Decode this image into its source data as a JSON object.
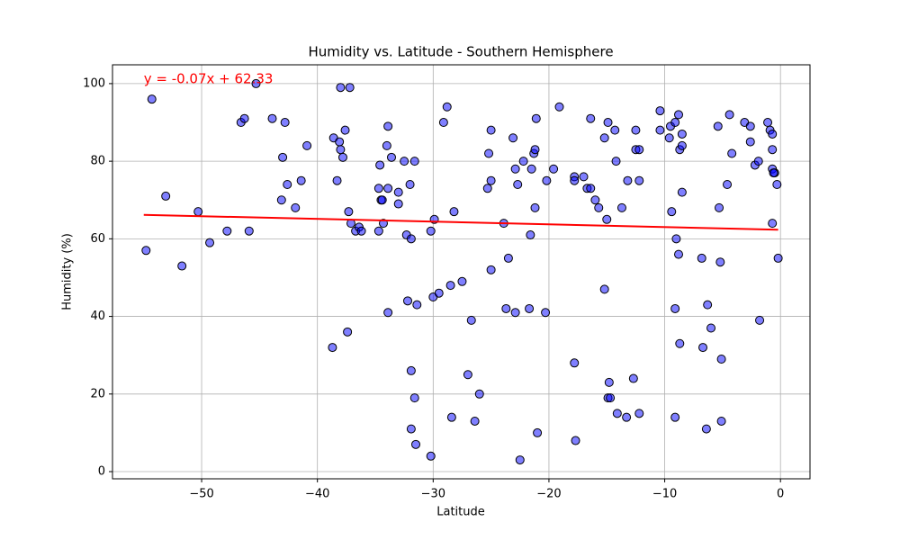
{
  "chart_data": {
    "type": "scatter",
    "title": "Humidity vs. Latitude - Southern Hemisphere",
    "xlabel": "Latitude",
    "ylabel": "Humidity (%)",
    "x": [
      -54.8,
      -54.3,
      -53.1,
      -51.7,
      -50.3,
      -49.3,
      -47.8,
      -46.6,
      -46.3,
      -45.9,
      -45.3,
      -43.9,
      -42.8,
      -43.0,
      -43.1,
      -42.6,
      -41.9,
      -41.4,
      -40.9,
      -38.7,
      -38.6,
      -38.3,
      -38.1,
      -38.0,
      -38.0,
      -37.8,
      -37.6,
      -37.4,
      -37.3,
      -37.2,
      -37.1,
      -36.7,
      -36.4,
      -36.2,
      -34.7,
      -34.6,
      -34.7,
      -34.5,
      -34.4,
      -34.3,
      -34.0,
      -33.9,
      -33.9,
      -33.9,
      -33.6,
      -33.0,
      -33.0,
      -32.5,
      -32.3,
      -32.2,
      -32.0,
      -31.9,
      -31.9,
      -31.9,
      -31.6,
      -31.6,
      -31.5,
      -31.4,
      -30.2,
      -30.2,
      -30.0,
      -29.9,
      -29.5,
      -29.1,
      -28.8,
      -28.5,
      -28.4,
      -28.2,
      -27.5,
      -27.0,
      -26.7,
      -26.4,
      -26.0,
      -25.3,
      -25.2,
      -25.0,
      -25.0,
      -25.0,
      -23.9,
      -23.7,
      -23.5,
      -23.1,
      -22.9,
      -22.9,
      -22.7,
      -22.5,
      -22.2,
      -21.7,
      -21.6,
      -21.5,
      -21.3,
      -21.2,
      -21.2,
      -21.1,
      -21.0,
      -20.3,
      -20.2,
      -19.6,
      -19.1,
      -17.8,
      -17.8,
      -17.8,
      -17.7,
      -17.0,
      -16.7,
      -16.4,
      -16.4,
      -16.0,
      -15.7,
      -15.2,
      -15.2,
      -15.0,
      -14.9,
      -14.8,
      -14.9,
      -14.7,
      -14.3,
      -14.2,
      -14.1,
      -13.7,
      -13.3,
      -13.2,
      -12.7,
      -12.5,
      -12.5,
      -12.2,
      -12.2,
      -12.2,
      -10.4,
      -10.4,
      -9.6,
      -9.4,
      -9.5,
      -9.1,
      -9.1,
      -9.1,
      -9.0,
      -8.8,
      -8.8,
      -8.7,
      -8.7,
      -8.5,
      -8.5,
      -8.5,
      -6.8,
      -6.7,
      -6.4,
      -6.3,
      -6.0,
      -5.4,
      -5.3,
      -5.2,
      -5.1,
      -5.1,
      -4.6,
      -4.4,
      -4.2,
      -3.1,
      -2.6,
      -2.6,
      -2.2,
      -1.9,
      -1.8,
      -1.1,
      -0.9,
      -0.7,
      -0.7,
      -0.7,
      -0.7,
      -0.5,
      -0.6,
      -0.3,
      -0.2
    ],
    "values": [
      57,
      96,
      71,
      53,
      67,
      59,
      62,
      90,
      91,
      62,
      100,
      91,
      90,
      81,
      70,
      74,
      68,
      75,
      84,
      32,
      86,
      75,
      85,
      99,
      83,
      81,
      88,
      36,
      67,
      99,
      64,
      62,
      63,
      62,
      62,
      79,
      73,
      70,
      70,
      64,
      84,
      89,
      73,
      41,
      81,
      72,
      69,
      80,
      61,
      44,
      74,
      60,
      26,
      11,
      80,
      19,
      7,
      43,
      62,
      4,
      45,
      65,
      46,
      90,
      94,
      48,
      14,
      67,
      49,
      25,
      39,
      13,
      20,
      73,
      82,
      88,
      75,
      52,
      64,
      42,
      55,
      86,
      78,
      41,
      74,
      3,
      80,
      42,
      61,
      78,
      82,
      68,
      83,
      91,
      10,
      41,
      75,
      78,
      94,
      76,
      75,
      28,
      8,
      76,
      73,
      91,
      73,
      70,
      68,
      86,
      47,
      65,
      90,
      23,
      19,
      19,
      88,
      80,
      15,
      68,
      14,
      75,
      24,
      88,
      83,
      75,
      83,
      15,
      93,
      88,
      86,
      67,
      89,
      14,
      42,
      90,
      60,
      92,
      56,
      83,
      33,
      87,
      84,
      72,
      55,
      32,
      11,
      43,
      37,
      89,
      68,
      54,
      29,
      13,
      74,
      92,
      82,
      90,
      89,
      85,
      79,
      80,
      39,
      90,
      88,
      64,
      83,
      87,
      78,
      77,
      77,
      74,
      55
    ],
    "color": "#0000ff",
    "regression": {
      "x": [
        -55,
        -0.2
      ],
      "values": [
        66.18,
        62.34
      ],
      "color": "#ff0000"
    },
    "annotation": {
      "text": "y = -0.07x + 62.33",
      "x": -55,
      "y": 100,
      "color": "#ff0000"
    },
    "xlim": [
      -57.7,
      2.55
    ],
    "ylim": [
      -1.85,
      104.85
    ],
    "xticks": [
      {
        "value": -50,
        "label": "−50"
      },
      {
        "value": -40,
        "label": "−40"
      },
      {
        "value": -30,
        "label": "−30"
      },
      {
        "value": -20,
        "label": "−20"
      },
      {
        "value": -10,
        "label": "−10"
      },
      0
    ],
    "yticks": [
      0,
      20,
      40,
      60,
      80,
      100
    ],
    "grid": true
  }
}
